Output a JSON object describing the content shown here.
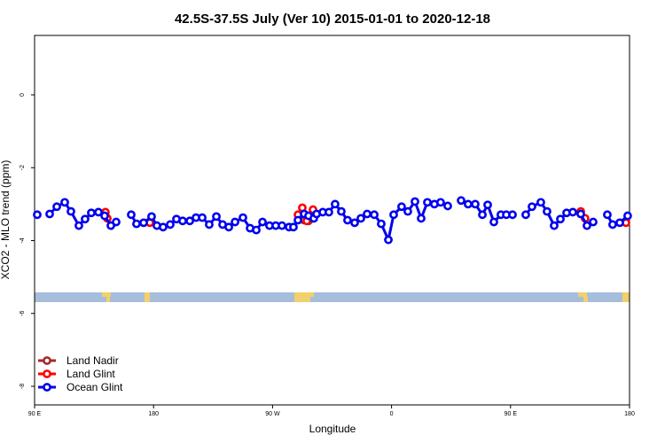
{
  "chart_data": {
    "type": "line",
    "title": "42.5S-37.5S July (Ver 10)   2015-01-01 to 2020-12-18",
    "x_label": "Longitude",
    "y_label": "XCO2 - MLO trend (ppm)",
    "xlim": [
      90,
      540
    ],
    "ylim": [
      -8.51,
      1.63
    ],
    "xticks": [
      {
        "value": 90,
        "label": "90 E"
      },
      180,
      {
        "value": 270,
        "label": "90 W"
      },
      {
        "value": 360,
        "label": "0"
      },
      {
        "value": 450,
        "label": "90 E"
      },
      {
        "value": 540,
        "label": "180"
      }
    ],
    "yticks": [
      0,
      -2,
      -4,
      -6,
      -8
    ],
    "legend": "bottom-left",
    "series": [
      {
        "name": "Land Nadir",
        "color": "#a52a2a",
        "x": [
          293.9,
          297.2
        ],
        "values": [
          -3.44,
          -3.46
        ]
      },
      {
        "name": "Land Glint",
        "color": "#ff0000",
        "x": [
          143.6,
          145.0,
          null,
          177.2,
          null,
          289.2,
          292.5,
          295.9,
          300.6,
          null,
          503.1,
          506.4,
          null,
          537.3
        ],
        "values": [
          -3.22,
          -3.39,
          null,
          -3.51,
          null,
          -3.29,
          -3.1,
          -3.46,
          -3.15,
          null,
          -3.2,
          -3.39,
          null,
          -3.51
        ]
      },
      {
        "name": "Ocean Glint",
        "color": "#0000ee",
        "x": [
          92.0,
          null,
          101.4,
          106.8,
          112.8,
          117.5,
          123.5,
          128.2,
          132.9,
          138.3,
          143.0,
          147.7,
          151.7,
          null,
          163.1,
          167.1,
          172.5,
          178.5,
          182.5,
          187.2,
          192.6,
          197.3,
          202.0,
          207.4,
          212.1,
          216.8,
          222.1,
          227.5,
          232.2,
          236.9,
          241.6,
          247.6,
          253.0,
          257.7,
          262.4,
          267.7,
          272.4,
          277.1,
          282.5,
          285.8,
          289.2,
          293.9,
          297.2,
          301.2,
          303.3,
          308.0,
          312.6,
          317.3,
          322.0,
          326.7,
          332.1,
          336.8,
          341.5,
          346.9,
          352.2,
          357.6,
          361.6,
          367.6,
          372.3,
          377.7,
          382.4,
          387.1,
          392.4,
          397.1,
          402.5,
          null,
          412.6,
          417.9,
          423.3,
          428.7,
          432.7,
          437.4,
          442.7,
          446.8,
          451.5,
          null,
          461.5,
          466.2,
          472.9,
          477.6,
          483.0,
          487.7,
          492.4,
          497.1,
          503.1,
          507.8,
          512.5,
          null,
          523.2,
          527.2,
          532.6,
          538.6
        ],
        "values": [
          -3.29,
          null,
          -3.27,
          -3.07,
          -2.95,
          -3.2,
          -3.59,
          -3.41,
          -3.24,
          -3.22,
          -3.32,
          -3.59,
          -3.49,
          null,
          -3.29,
          -3.54,
          -3.51,
          -3.34,
          -3.59,
          -3.63,
          -3.56,
          -3.41,
          -3.46,
          -3.46,
          -3.37,
          -3.37,
          -3.56,
          -3.34,
          -3.56,
          -3.63,
          -3.49,
          -3.37,
          -3.66,
          -3.71,
          -3.49,
          -3.59,
          -3.59,
          -3.59,
          -3.63,
          -3.63,
          -3.44,
          -3.27,
          -3.32,
          -3.39,
          -3.27,
          -3.22,
          -3.22,
          -3.0,
          -3.2,
          -3.44,
          -3.51,
          -3.39,
          -3.27,
          -3.29,
          -3.54,
          -3.98,
          -3.29,
          -3.07,
          -3.2,
          -2.93,
          -3.39,
          -2.95,
          -3.0,
          -2.95,
          -3.05,
          null,
          -2.9,
          -3.0,
          -3.0,
          -3.29,
          -3.02,
          -3.49,
          -3.29,
          -3.29,
          -3.29,
          null,
          -3.29,
          -3.07,
          -2.95,
          -3.2,
          -3.59,
          -3.41,
          -3.24,
          -3.22,
          -3.27,
          -3.59,
          -3.49,
          null,
          -3.29,
          -3.56,
          -3.51,
          -3.32
        ]
      }
    ]
  }
}
